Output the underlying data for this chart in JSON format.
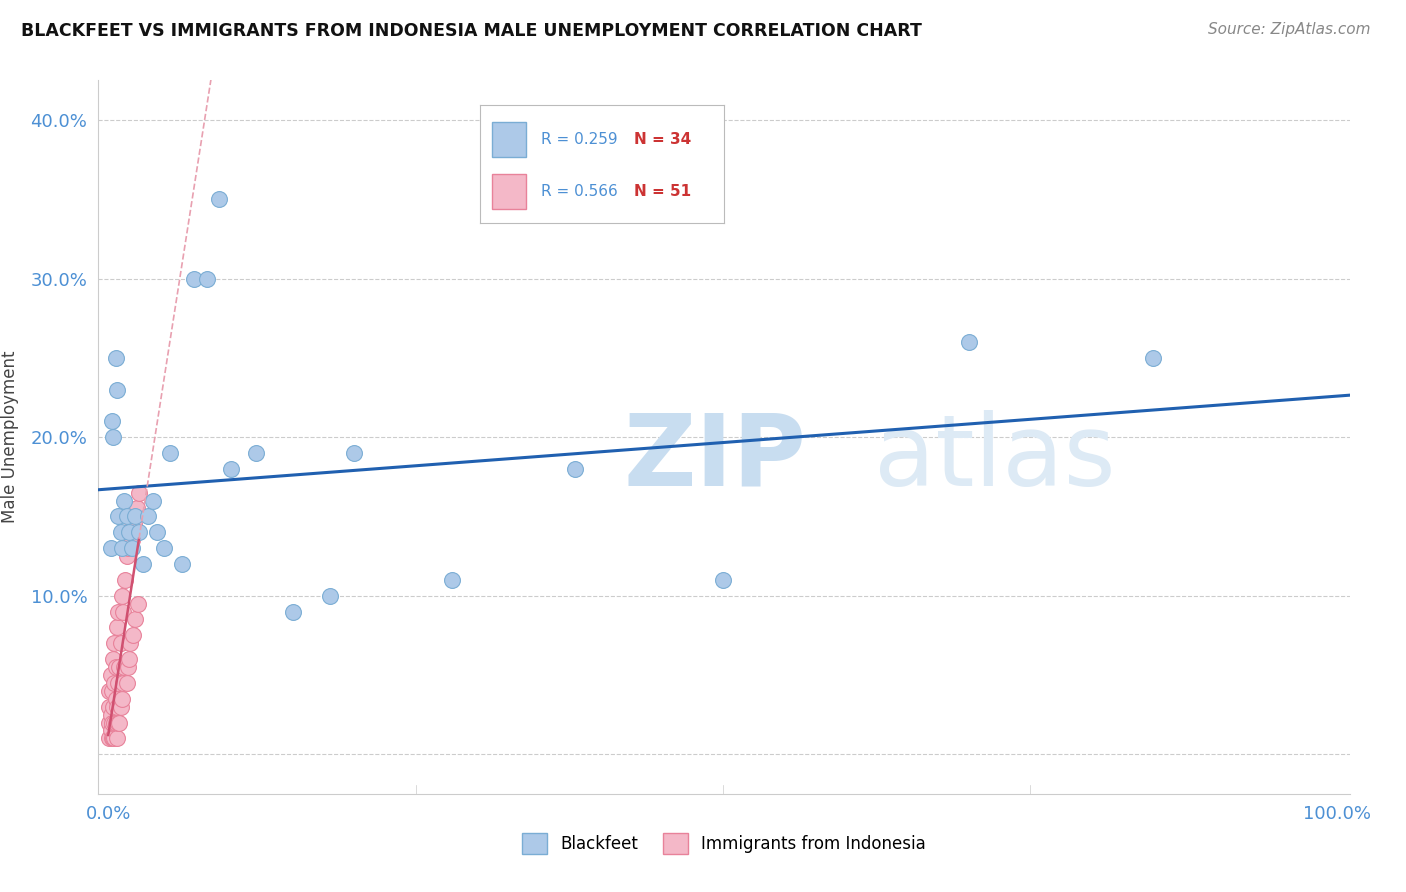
{
  "title": "BLACKFEET VS IMMIGRANTS FROM INDONESIA MALE UNEMPLOYMENT CORRELATION CHART",
  "source": "Source: ZipAtlas.com",
  "ylabel": "Male Unemployment",
  "watermark_zip": "ZIP",
  "watermark_atlas": "atlas",
  "blackfeet_color": "#adc9e8",
  "blackfeet_edge": "#7aadd4",
  "indonesia_color": "#f4b8c8",
  "indonesia_edge": "#e8829a",
  "blue_line_color": "#2060b0",
  "pink_line_color": "#d05070",
  "pink_dash_color": "#e8a0b0",
  "R_blue": 0.259,
  "N_blue": 34,
  "R_pink": 0.566,
  "N_pink": 51,
  "legend_text_color": "#4d90d4",
  "N_text_color": "#cc3333",
  "axis_label_color": "#4d90d4",
  "grid_color": "#cccccc",
  "blackfeet_x": [
    0.002,
    0.003,
    0.004,
    0.006,
    0.007,
    0.008,
    0.01,
    0.011,
    0.013,
    0.015,
    0.017,
    0.019,
    0.022,
    0.025,
    0.028,
    0.032,
    0.036,
    0.04,
    0.045,
    0.05,
    0.06,
    0.07,
    0.08,
    0.09,
    0.1,
    0.12,
    0.15,
    0.18,
    0.2,
    0.28,
    0.38,
    0.5,
    0.7,
    0.85
  ],
  "blackfeet_y": [
    0.13,
    0.21,
    0.2,
    0.25,
    0.23,
    0.15,
    0.14,
    0.13,
    0.16,
    0.15,
    0.14,
    0.13,
    0.15,
    0.14,
    0.12,
    0.15,
    0.16,
    0.14,
    0.13,
    0.19,
    0.12,
    0.3,
    0.3,
    0.35,
    0.18,
    0.19,
    0.09,
    0.1,
    0.19,
    0.11,
    0.18,
    0.11,
    0.26,
    0.25
  ],
  "indonesia_x": [
    0.0005,
    0.001,
    0.001,
    0.001,
    0.002,
    0.002,
    0.002,
    0.003,
    0.003,
    0.003,
    0.004,
    0.004,
    0.004,
    0.005,
    0.005,
    0.005,
    0.005,
    0.006,
    0.006,
    0.006,
    0.007,
    0.007,
    0.007,
    0.008,
    0.008,
    0.008,
    0.009,
    0.009,
    0.01,
    0.01,
    0.011,
    0.011,
    0.012,
    0.012,
    0.013,
    0.014,
    0.015,
    0.015,
    0.015,
    0.016,
    0.016,
    0.017,
    0.017,
    0.018,
    0.019,
    0.02,
    0.021,
    0.022,
    0.023,
    0.024,
    0.025
  ],
  "indonesia_y": [
    0.02,
    0.01,
    0.03,
    0.04,
    0.015,
    0.025,
    0.05,
    0.01,
    0.02,
    0.04,
    0.01,
    0.03,
    0.06,
    0.01,
    0.02,
    0.045,
    0.07,
    0.02,
    0.035,
    0.055,
    0.01,
    0.03,
    0.08,
    0.02,
    0.045,
    0.09,
    0.02,
    0.055,
    0.03,
    0.07,
    0.035,
    0.1,
    0.045,
    0.09,
    0.055,
    0.11,
    0.045,
    0.125,
    0.14,
    0.055,
    0.13,
    0.06,
    0.15,
    0.07,
    0.135,
    0.075,
    0.145,
    0.085,
    0.155,
    0.095,
    0.165
  ],
  "xlim": [
    -0.008,
    1.01
  ],
  "ylim": [
    -0.025,
    0.425
  ],
  "ytick_vals": [
    0.0,
    0.1,
    0.2,
    0.3,
    0.4
  ],
  "ytick_labels": [
    "",
    "10.0%",
    "20.0%",
    "30.0%",
    "40.0%"
  ],
  "xtick_vals": [
    0.0,
    1.0
  ],
  "xtick_labels": [
    "0.0%",
    "100.0%"
  ]
}
